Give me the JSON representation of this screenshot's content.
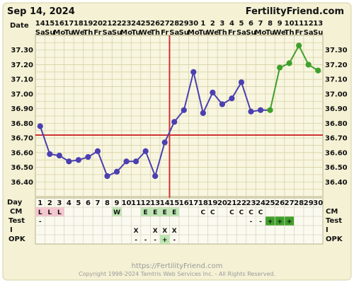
{
  "header": {
    "date_label": "Sep 14, 2024",
    "site_name": "FertilityFriend.com",
    "row_label_date": "Date"
  },
  "footer": {
    "link": "https://FertilityFriend.com",
    "copyright": "Copyright 1998-2024 Tamtris Web Services Inc. - All Rights Reserved."
  },
  "rows": {
    "day": "Day",
    "cm": "CM",
    "test": "Test",
    "intercourse": "I",
    "opk": "OPK"
  },
  "colors": {
    "background_panel": "#f4f1d4",
    "grid_fill": "#f8f6e0",
    "grid_line": "#d7d2a6",
    "pre_line": "#4b3fb1",
    "post_line": "#3fa02a",
    "coverline": "#cc3333",
    "ovulation_line": "#cc3333",
    "period_cell": "#f6c6d0",
    "fertile_cell": "#bde6b3",
    "test_positive_cell": "#3fa02a"
  },
  "chart_data": {
    "type": "line",
    "title": "",
    "ylim": [
      36.3,
      37.4
    ],
    "yticks": [
      "37.30",
      "37.20",
      "37.10",
      "37.00",
      "36.90",
      "36.80",
      "36.70",
      "36.60",
      "36.50",
      "36.40"
    ],
    "date_numbers": [
      "14",
      "15",
      "16",
      "17",
      "18",
      "19",
      "20",
      "21",
      "22",
      "23",
      "24",
      "25",
      "26",
      "27",
      "28",
      "29",
      "30",
      "1",
      "2",
      "3",
      "4",
      "5",
      "6",
      "7",
      "8",
      "9",
      "10",
      "11",
      "12",
      "13"
    ],
    "weekdays": [
      "Sa",
      "Su",
      "Mo",
      "Tu",
      "We",
      "Th",
      "Fr",
      "Sa",
      "Su",
      "Mo",
      "Tu",
      "We",
      "Th",
      "Fr",
      "Sa",
      "Su",
      "Mo",
      "Tu",
      "We",
      "Th",
      "Fr",
      "Sa",
      "Su",
      "Mo",
      "Tu",
      "We",
      "Th",
      "Fr",
      "Sa",
      "Su"
    ],
    "cycle_days": [
      1,
      2,
      3,
      4,
      5,
      6,
      7,
      8,
      9,
      10,
      11,
      12,
      13,
      14,
      15,
      16,
      17,
      18,
      19,
      20,
      21,
      22,
      23,
      24,
      25,
      26,
      27,
      28,
      29,
      30
    ],
    "series": [
      {
        "values": [
          36.78,
          36.59,
          36.58,
          36.54,
          36.55,
          36.57,
          36.61,
          36.44,
          36.47,
          36.54,
          36.54,
          36.61,
          36.44,
          36.67,
          36.81,
          36.89,
          37.15,
          36.87,
          37.01,
          36.93,
          36.97,
          37.08,
          36.88,
          36.89,
          36.89,
          37.18,
          37.21,
          37.33,
          37.2,
          37.16
        ]
      }
    ],
    "green_from_index": 24,
    "coverline": 36.72,
    "ovulation_day": 14,
    "cm": [
      "L",
      "L",
      "L",
      "",
      "",
      "",
      "",
      "",
      "W",
      "",
      "",
      "E",
      "E",
      "E",
      "E",
      "",
      "",
      "C",
      "C",
      "",
      "C",
      "C",
      "C",
      "C",
      "",
      "",
      "",
      "",
      "",
      ""
    ],
    "cm_highlight": [
      "period",
      "period",
      "period",
      "",
      "",
      "",
      "",
      "",
      "fertile",
      "",
      "",
      "fertile",
      "fertile",
      "fertile",
      "fertile",
      "",
      "",
      "",
      "",
      "",
      "",
      "",
      "",
      "",
      "",
      "",
      "",
      "",
      "",
      ""
    ],
    "test": [
      "-",
      "",
      "",
      "",
      "",
      "",
      "",
      "",
      "",
      "",
      "",
      "",
      "",
      "",
      "",
      "",
      "",
      "",
      "",
      "",
      "",
      "",
      "-",
      "-",
      "+",
      "+",
      "+",
      "",
      "",
      ""
    ],
    "intercourse": [
      "",
      "",
      "",
      "",
      "",
      "",
      "",
      "",
      "",
      "",
      "X",
      "",
      "X",
      "X",
      "X",
      "",
      "",
      "",
      "",
      "",
      "",
      "",
      "",
      "",
      "",
      "",
      "",
      "",
      "",
      ""
    ],
    "opk": [
      "",
      "",
      "",
      "",
      "",
      "",
      "",
      "",
      "",
      "",
      "-",
      "-",
      "-",
      "+",
      "-",
      "",
      "",
      "",
      "",
      "",
      "",
      "",
      "",
      "",
      "",
      "",
      "",
      "",
      "",
      ""
    ]
  }
}
